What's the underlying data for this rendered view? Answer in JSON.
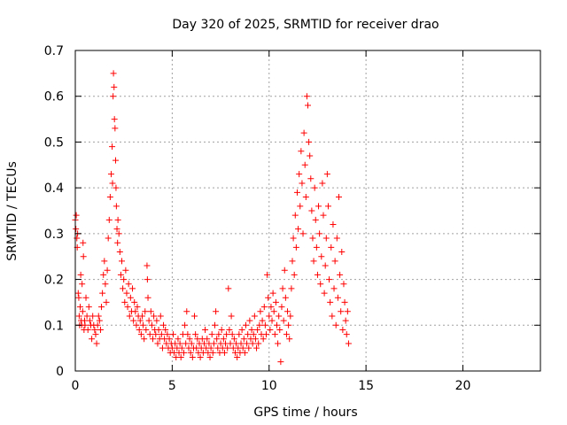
{
  "chart_data": {
    "type": "scatter",
    "title": "Day 320 of 2025, SRMTID for receiver drao",
    "xlabel": "GPS time / hours",
    "ylabel": "SRMTID / TECUs",
    "xlim": [
      0,
      24
    ],
    "ylim": [
      0,
      0.7
    ],
    "x_ticks": [
      0,
      5,
      10,
      15,
      20
    ],
    "x_tick_labels": [
      "0",
      "5",
      "10",
      "15",
      "20"
    ],
    "y_ticks": [
      0,
      0.1,
      0.2,
      0.3,
      0.4,
      0.5,
      0.6,
      0.7
    ],
    "y_tick_labels": [
      "0",
      "0.1",
      "0.2",
      "0.3",
      "0.4",
      "0.5",
      "0.6",
      "0.7"
    ],
    "grid": true,
    "marker": "+",
    "colors": {
      "series": "#ff0000",
      "grid": "#a0a0a0",
      "axis": "#000000"
    },
    "series": [
      {
        "name": "SRMTID",
        "points": [
          [
            0.0,
            0.33
          ],
          [
            0.03,
            0.31
          ],
          [
            0.05,
            0.34
          ],
          [
            0.08,
            0.29
          ],
          [
            0.1,
            0.27
          ],
          [
            0.12,
            0.3
          ],
          [
            0.15,
            0.17
          ],
          [
            0.18,
            0.16
          ],
          [
            0.2,
            0.12
          ],
          [
            0.22,
            0.1
          ],
          [
            0.25,
            0.14
          ],
          [
            0.28,
            0.21
          ],
          [
            0.3,
            0.11
          ],
          [
            0.33,
            0.1
          ],
          [
            0.35,
            0.19
          ],
          [
            0.38,
            0.13
          ],
          [
            0.4,
            0.28
          ],
          [
            0.42,
            0.25
          ],
          [
            0.45,
            0.09
          ],
          [
            0.48,
            0.11
          ],
          [
            0.5,
            0.1
          ],
          [
            0.55,
            0.16
          ],
          [
            0.6,
            0.12
          ],
          [
            0.65,
            0.09
          ],
          [
            0.7,
            0.14
          ],
          [
            0.75,
            0.11
          ],
          [
            0.8,
            0.1
          ],
          [
            0.85,
            0.07
          ],
          [
            0.9,
            0.12
          ],
          [
            0.95,
            0.1
          ],
          [
            1.0,
            0.09
          ],
          [
            1.05,
            0.08
          ],
          [
            1.1,
            0.06
          ],
          [
            1.15,
            0.1
          ],
          [
            1.2,
            0.12
          ],
          [
            1.25,
            0.11
          ],
          [
            1.3,
            0.09
          ],
          [
            1.35,
            0.14
          ],
          [
            1.4,
            0.17
          ],
          [
            1.45,
            0.21
          ],
          [
            1.5,
            0.24
          ],
          [
            1.55,
            0.19
          ],
          [
            1.6,
            0.15
          ],
          [
            1.65,
            0.22
          ],
          [
            1.7,
            0.29
          ],
          [
            1.75,
            0.33
          ],
          [
            1.8,
            0.38
          ],
          [
            1.85,
            0.43
          ],
          [
            1.9,
            0.49
          ],
          [
            1.92,
            0.41
          ],
          [
            1.95,
            0.6
          ],
          [
            1.97,
            0.65
          ],
          [
            2.0,
            0.62
          ],
          [
            2.02,
            0.55
          ],
          [
            2.05,
            0.53
          ],
          [
            2.08,
            0.46
          ],
          [
            2.1,
            0.4
          ],
          [
            2.12,
            0.36
          ],
          [
            2.15,
            0.31
          ],
          [
            2.18,
            0.28
          ],
          [
            2.2,
            0.33
          ],
          [
            2.25,
            0.3
          ],
          [
            2.3,
            0.26
          ],
          [
            2.35,
            0.21
          ],
          [
            2.4,
            0.24
          ],
          [
            2.45,
            0.18
          ],
          [
            2.5,
            0.2
          ],
          [
            2.55,
            0.15
          ],
          [
            2.6,
            0.22
          ],
          [
            2.65,
            0.17
          ],
          [
            2.7,
            0.14
          ],
          [
            2.75,
            0.19
          ],
          [
            2.8,
            0.12
          ],
          [
            2.85,
            0.16
          ],
          [
            2.9,
            0.13
          ],
          [
            2.95,
            0.18
          ],
          [
            3.0,
            0.11
          ],
          [
            3.05,
            0.15
          ],
          [
            3.1,
            0.13
          ],
          [
            3.15,
            0.1
          ],
          [
            3.2,
            0.14
          ],
          [
            3.25,
            0.12
          ],
          [
            3.3,
            0.09
          ],
          [
            3.35,
            0.11
          ],
          [
            3.4,
            0.08
          ],
          [
            3.45,
            0.12
          ],
          [
            3.5,
            0.1
          ],
          [
            3.55,
            0.07
          ],
          [
            3.6,
            0.13
          ],
          [
            3.65,
            0.09
          ],
          [
            3.7,
            0.23
          ],
          [
            3.72,
            0.2
          ],
          [
            3.75,
            0.16
          ],
          [
            3.8,
            0.11
          ],
          [
            3.85,
            0.08
          ],
          [
            3.9,
            0.13
          ],
          [
            3.95,
            0.1
          ],
          [
            4.0,
            0.07
          ],
          [
            4.05,
            0.12
          ],
          [
            4.1,
            0.09
          ],
          [
            4.15,
            0.08
          ],
          [
            4.2,
            0.11
          ],
          [
            4.25,
            0.06
          ],
          [
            4.3,
            0.09
          ],
          [
            4.35,
            0.07
          ],
          [
            4.4,
            0.12
          ],
          [
            4.45,
            0.08
          ],
          [
            4.5,
            0.05
          ],
          [
            4.55,
            0.1
          ],
          [
            4.6,
            0.07
          ],
          [
            4.65,
            0.09
          ],
          [
            4.7,
            0.06
          ],
          [
            4.75,
            0.08
          ],
          [
            4.8,
            0.05
          ],
          [
            4.85,
            0.07
          ],
          [
            4.9,
            0.04
          ],
          [
            4.95,
            0.06
          ],
          [
            5.0,
            0.05
          ],
          [
            5.05,
            0.08
          ],
          [
            5.1,
            0.04
          ],
          [
            5.15,
            0.06
          ],
          [
            5.2,
            0.03
          ],
          [
            5.25,
            0.05
          ],
          [
            5.3,
            0.07
          ],
          [
            5.35,
            0.04
          ],
          [
            5.4,
            0.06
          ],
          [
            5.45,
            0.03
          ],
          [
            5.5,
            0.05
          ],
          [
            5.55,
            0.08
          ],
          [
            5.6,
            0.04
          ],
          [
            5.65,
            0.1
          ],
          [
            5.7,
            0.06
          ],
          [
            5.75,
            0.13
          ],
          [
            5.8,
            0.08
          ],
          [
            5.85,
            0.05
          ],
          [
            5.9,
            0.07
          ],
          [
            5.95,
            0.04
          ],
          [
            6.0,
            0.06
          ],
          [
            6.05,
            0.03
          ],
          [
            6.1,
            0.05
          ],
          [
            6.15,
            0.12
          ],
          [
            6.2,
            0.08
          ],
          [
            6.25,
            0.05
          ],
          [
            6.3,
            0.07
          ],
          [
            6.35,
            0.04
          ],
          [
            6.4,
            0.06
          ],
          [
            6.45,
            0.03
          ],
          [
            6.5,
            0.05
          ],
          [
            6.55,
            0.07
          ],
          [
            6.6,
            0.04
          ],
          [
            6.65,
            0.06
          ],
          [
            6.7,
            0.09
          ],
          [
            6.75,
            0.05
          ],
          [
            6.8,
            0.07
          ],
          [
            6.85,
            0.04
          ],
          [
            6.9,
            0.06
          ],
          [
            6.95,
            0.03
          ],
          [
            7.0,
            0.05
          ],
          [
            7.05,
            0.08
          ],
          [
            7.1,
            0.04
          ],
          [
            7.15,
            0.06
          ],
          [
            7.2,
            0.1
          ],
          [
            7.25,
            0.13
          ],
          [
            7.3,
            0.07
          ],
          [
            7.35,
            0.05
          ],
          [
            7.4,
            0.08
          ],
          [
            7.45,
            0.04
          ],
          [
            7.5,
            0.06
          ],
          [
            7.55,
            0.09
          ],
          [
            7.6,
            0.05
          ],
          [
            7.65,
            0.07
          ],
          [
            7.7,
            0.04
          ],
          [
            7.75,
            0.06
          ],
          [
            7.8,
            0.08
          ],
          [
            7.85,
            0.05
          ],
          [
            7.9,
            0.18
          ],
          [
            7.95,
            0.09
          ],
          [
            8.0,
            0.06
          ],
          [
            8.05,
            0.12
          ],
          [
            8.1,
            0.08
          ],
          [
            8.15,
            0.05
          ],
          [
            8.2,
            0.07
          ],
          [
            8.25,
            0.04
          ],
          [
            8.3,
            0.06
          ],
          [
            8.35,
            0.03
          ],
          [
            8.4,
            0.05
          ],
          [
            8.45,
            0.08
          ],
          [
            8.5,
            0.04
          ],
          [
            8.55,
            0.06
          ],
          [
            8.6,
            0.09
          ],
          [
            8.65,
            0.05
          ],
          [
            8.7,
            0.07
          ],
          [
            8.75,
            0.04
          ],
          [
            8.8,
            0.1
          ],
          [
            8.85,
            0.06
          ],
          [
            8.9,
            0.08
          ],
          [
            8.95,
            0.05
          ],
          [
            9.0,
            0.11
          ],
          [
            9.05,
            0.07
          ],
          [
            9.1,
            0.09
          ],
          [
            9.15,
            0.06
          ],
          [
            9.2,
            0.08
          ],
          [
            9.25,
            0.12
          ],
          [
            9.3,
            0.07
          ],
          [
            9.35,
            0.05
          ],
          [
            9.4,
            0.09
          ],
          [
            9.45,
            0.06
          ],
          [
            9.5,
            0.1
          ],
          [
            9.55,
            0.13
          ],
          [
            9.6,
            0.08
          ],
          [
            9.65,
            0.11
          ],
          [
            9.7,
            0.07
          ],
          [
            9.75,
            0.14
          ],
          [
            9.8,
            0.1
          ],
          [
            9.85,
            0.08
          ],
          [
            9.9,
            0.21
          ],
          [
            9.95,
            0.16
          ],
          [
            10.0,
            0.12
          ],
          [
            10.05,
            0.09
          ],
          [
            10.1,
            0.14
          ],
          [
            10.15,
            0.11
          ],
          [
            10.2,
            0.17
          ],
          [
            10.25,
            0.13
          ],
          [
            10.3,
            0.08
          ],
          [
            10.35,
            0.15
          ],
          [
            10.4,
            0.1
          ],
          [
            10.45,
            0.06
          ],
          [
            10.5,
            0.12
          ],
          [
            10.55,
            0.09
          ],
          [
            10.6,
            0.02
          ],
          [
            10.65,
            0.14
          ],
          [
            10.7,
            0.18
          ],
          [
            10.75,
            0.11
          ],
          [
            10.8,
            0.22
          ],
          [
            10.85,
            0.16
          ],
          [
            10.9,
            0.08
          ],
          [
            10.95,
            0.13
          ],
          [
            11.0,
            0.1
          ],
          [
            11.05,
            0.07
          ],
          [
            11.1,
            0.12
          ],
          [
            11.15,
            0.18
          ],
          [
            11.2,
            0.24
          ],
          [
            11.25,
            0.29
          ],
          [
            11.3,
            0.21
          ],
          [
            11.35,
            0.34
          ],
          [
            11.4,
            0.27
          ],
          [
            11.45,
            0.39
          ],
          [
            11.5,
            0.31
          ],
          [
            11.55,
            0.43
          ],
          [
            11.6,
            0.36
          ],
          [
            11.65,
            0.48
          ],
          [
            11.7,
            0.41
          ],
          [
            11.75,
            0.3
          ],
          [
            11.8,
            0.52
          ],
          [
            11.85,
            0.45
          ],
          [
            11.9,
            0.38
          ],
          [
            11.95,
            0.6
          ],
          [
            12.0,
            0.58
          ],
          [
            12.05,
            0.5
          ],
          [
            12.1,
            0.47
          ],
          [
            12.15,
            0.42
          ],
          [
            12.2,
            0.35
          ],
          [
            12.25,
            0.29
          ],
          [
            12.3,
            0.24
          ],
          [
            12.35,
            0.4
          ],
          [
            12.4,
            0.33
          ],
          [
            12.45,
            0.27
          ],
          [
            12.5,
            0.21
          ],
          [
            12.55,
            0.36
          ],
          [
            12.6,
            0.3
          ],
          [
            12.65,
            0.19
          ],
          [
            12.7,
            0.25
          ],
          [
            12.75,
            0.41
          ],
          [
            12.8,
            0.34
          ],
          [
            12.85,
            0.17
          ],
          [
            12.9,
            0.23
          ],
          [
            12.95,
            0.29
          ],
          [
            13.0,
            0.43
          ],
          [
            13.05,
            0.36
          ],
          [
            13.1,
            0.2
          ],
          [
            13.15,
            0.15
          ],
          [
            13.2,
            0.27
          ],
          [
            13.25,
            0.12
          ],
          [
            13.3,
            0.32
          ],
          [
            13.35,
            0.18
          ],
          [
            13.4,
            0.24
          ],
          [
            13.45,
            0.1
          ],
          [
            13.5,
            0.29
          ],
          [
            13.55,
            0.16
          ],
          [
            13.6,
            0.38
          ],
          [
            13.65,
            0.21
          ],
          [
            13.7,
            0.13
          ],
          [
            13.75,
            0.26
          ],
          [
            13.8,
            0.09
          ],
          [
            13.85,
            0.19
          ],
          [
            13.9,
            0.15
          ],
          [
            13.95,
            0.11
          ],
          [
            14.0,
            0.08
          ],
          [
            14.05,
            0.13
          ],
          [
            14.1,
            0.06
          ]
        ]
      }
    ]
  }
}
